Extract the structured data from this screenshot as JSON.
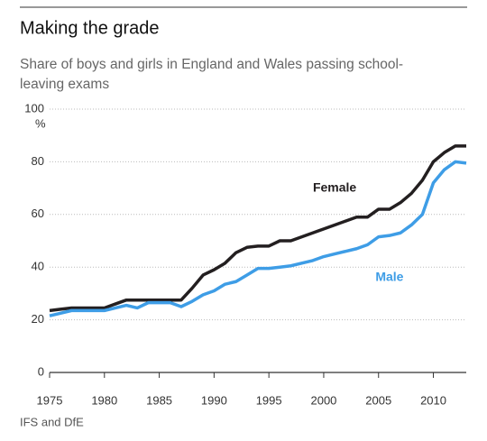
{
  "chart_data": {
    "type": "line",
    "title": "Making the grade",
    "subtitle": [
      "Share of boys and girls in England and Wales passing school-",
      "leaving exams"
    ],
    "y_unit": "%",
    "source": "IFS and DfE",
    "x": [
      1975,
      1976,
      1977,
      1978,
      1979,
      1980,
      1981,
      1982,
      1983,
      1984,
      1985,
      1986,
      1987,
      1988,
      1989,
      1990,
      1991,
      1992,
      1993,
      1994,
      1995,
      1996,
      1997,
      1998,
      1999,
      2000,
      2001,
      2002,
      2003,
      2004,
      2005,
      2006,
      2007,
      2008,
      2009,
      2010,
      2011,
      2012,
      2013
    ],
    "series": [
      {
        "name": "Female",
        "color": "#231f20",
        "values": [
          23.5,
          24,
          24.5,
          24.5,
          24.5,
          24.5,
          26,
          27.5,
          27.5,
          27.5,
          27.5,
          27.5,
          27.5,
          32,
          37,
          39,
          41.5,
          45.5,
          47.5,
          48,
          48,
          50,
          50,
          51.5,
          53,
          54.5,
          56,
          57.5,
          59,
          59,
          62,
          62,
          64.5,
          68,
          73,
          80,
          83.5,
          86,
          86
        ]
      },
      {
        "name": "Male",
        "color": "#3e9de6",
        "values": [
          21.5,
          22.5,
          23.5,
          23.5,
          23.5,
          23.5,
          24.5,
          25.5,
          24.5,
          26.5,
          26.5,
          26.5,
          25,
          27,
          29.5,
          31,
          33.5,
          34.5,
          37,
          39.5,
          39.5,
          40,
          40.5,
          41.5,
          42.5,
          44,
          45,
          46,
          47,
          48.5,
          51.5,
          52,
          53,
          56,
          60,
          72,
          77,
          80,
          79.5
        ]
      }
    ],
    "xlim": [
      1975,
      2013
    ],
    "xticks": [
      1975,
      1980,
      1985,
      1990,
      1995,
      2000,
      2005,
      2010
    ],
    "ylim": [
      0,
      100
    ],
    "yticks": [
      0,
      20,
      40,
      60,
      80,
      100
    ],
    "grid": true
  }
}
